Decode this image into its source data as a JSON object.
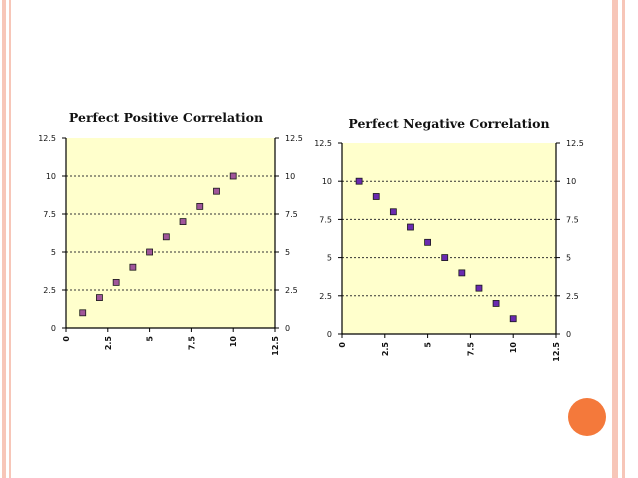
{
  "theme": {
    "accent_color": "#f4793b",
    "stripe_color": "#f7c6b8",
    "plot_background": "#ffffcc",
    "marker_fill": "#a0569a",
    "marker_fill_alt": "#6a2ab0",
    "gridline_style": "dotted"
  },
  "chart_data": [
    {
      "type": "scatter",
      "title": "Perfect Positive Correlation",
      "x": [
        1,
        2,
        3,
        4,
        5,
        6,
        7,
        8,
        9,
        10
      ],
      "y": [
        1,
        2,
        3,
        4,
        5,
        6,
        7,
        8,
        9,
        10
      ],
      "xlim": [
        0,
        12.5
      ],
      "ylim": [
        0,
        12.5
      ],
      "xticks": [
        "0",
        "2.5",
        "5",
        "7.5",
        "10",
        "12.5"
      ],
      "yticks": [
        "0",
        "2.5",
        "5",
        "7.5",
        "10",
        "12.5"
      ],
      "grid": "horizontal dotted",
      "right_axis_labels": true,
      "marker_color": "#a0569a"
    },
    {
      "type": "scatter",
      "title": "Perfect Negative Correlation",
      "x": [
        1,
        2,
        3,
        4,
        5,
        6,
        7,
        8,
        9,
        10
      ],
      "y": [
        10,
        9,
        8,
        7,
        6,
        5,
        4,
        3,
        2,
        1
      ],
      "xlim": [
        0,
        12.5
      ],
      "ylim": [
        0,
        12.5
      ],
      "xticks": [
        "0",
        "2.5",
        "5",
        "7.5",
        "10",
        "12.5"
      ],
      "yticks": [
        "0",
        "2.5",
        "5",
        "7.5",
        "10",
        "12.5"
      ],
      "grid": "horizontal dotted",
      "right_axis_labels": true,
      "marker_color": "#6a2ab0"
    }
  ]
}
